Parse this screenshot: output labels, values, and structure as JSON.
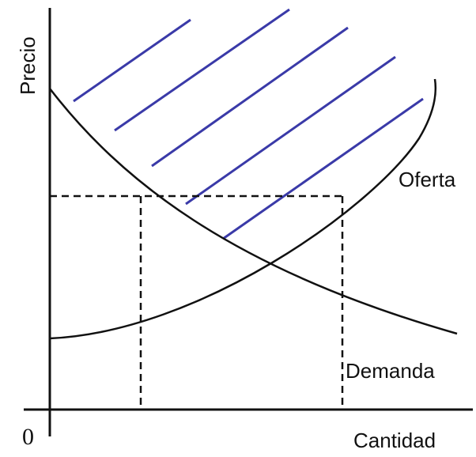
{
  "labels": {
    "y_axis": "Precio",
    "x_axis": "Cantidad",
    "origin": "0",
    "supply": "Oferta",
    "demand": "Demanda"
  }
}
